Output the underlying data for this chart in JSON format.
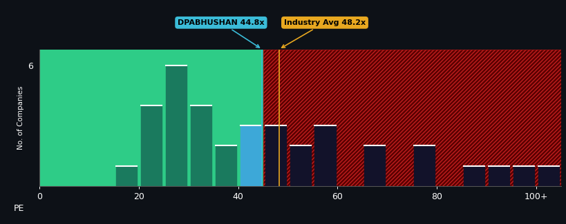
{
  "background_color": "#0d1117",
  "plot_bg_green": "#2ecc87",
  "green_region_end": 45,
  "bar_bins": [
    0,
    5,
    10,
    15,
    20,
    25,
    30,
    35,
    40,
    45,
    50,
    55,
    60,
    65,
    70,
    75,
    80,
    85,
    90,
    95,
    100
  ],
  "bar_values": [
    0,
    0,
    0,
    1,
    4,
    6,
    4,
    2,
    3,
    3,
    2,
    3,
    0,
    2,
    0,
    2,
    0,
    1,
    1,
    1,
    1
  ],
  "bar_colors_type": [
    "green",
    "green",
    "green",
    "green",
    "green",
    "green",
    "green",
    "green",
    "blue",
    "dark",
    "dark",
    "dark",
    "dark",
    "dark",
    "dark",
    "dark",
    "dark",
    "dark",
    "dark",
    "dark",
    "dark"
  ],
  "dpabhushan_x": 44.8,
  "industry_avg_x": 48.2,
  "xlim": [
    0,
    105
  ],
  "ylim": [
    0,
    6.8
  ],
  "yticks": [
    6
  ],
  "xtick_labels": [
    "0",
    "20",
    "40",
    "60",
    "80",
    "100+"
  ],
  "xtick_positions": [
    0,
    20,
    40,
    60,
    80,
    100
  ],
  "xlabel": "PE",
  "ylabel": "No. of Companies",
  "green_bar_color": "#1a7a5e",
  "blue_bar_color": "#3da8d8",
  "dark_bar_color": "#12122a",
  "annotation_dpabhushan": "DPABHUSHAN 44.8x",
  "annotation_industry": "Industry Avg 48.2x",
  "ann_dp_color": "#3bbcd8",
  "ann_ind_color": "#e8a820",
  "bin_width": 5
}
